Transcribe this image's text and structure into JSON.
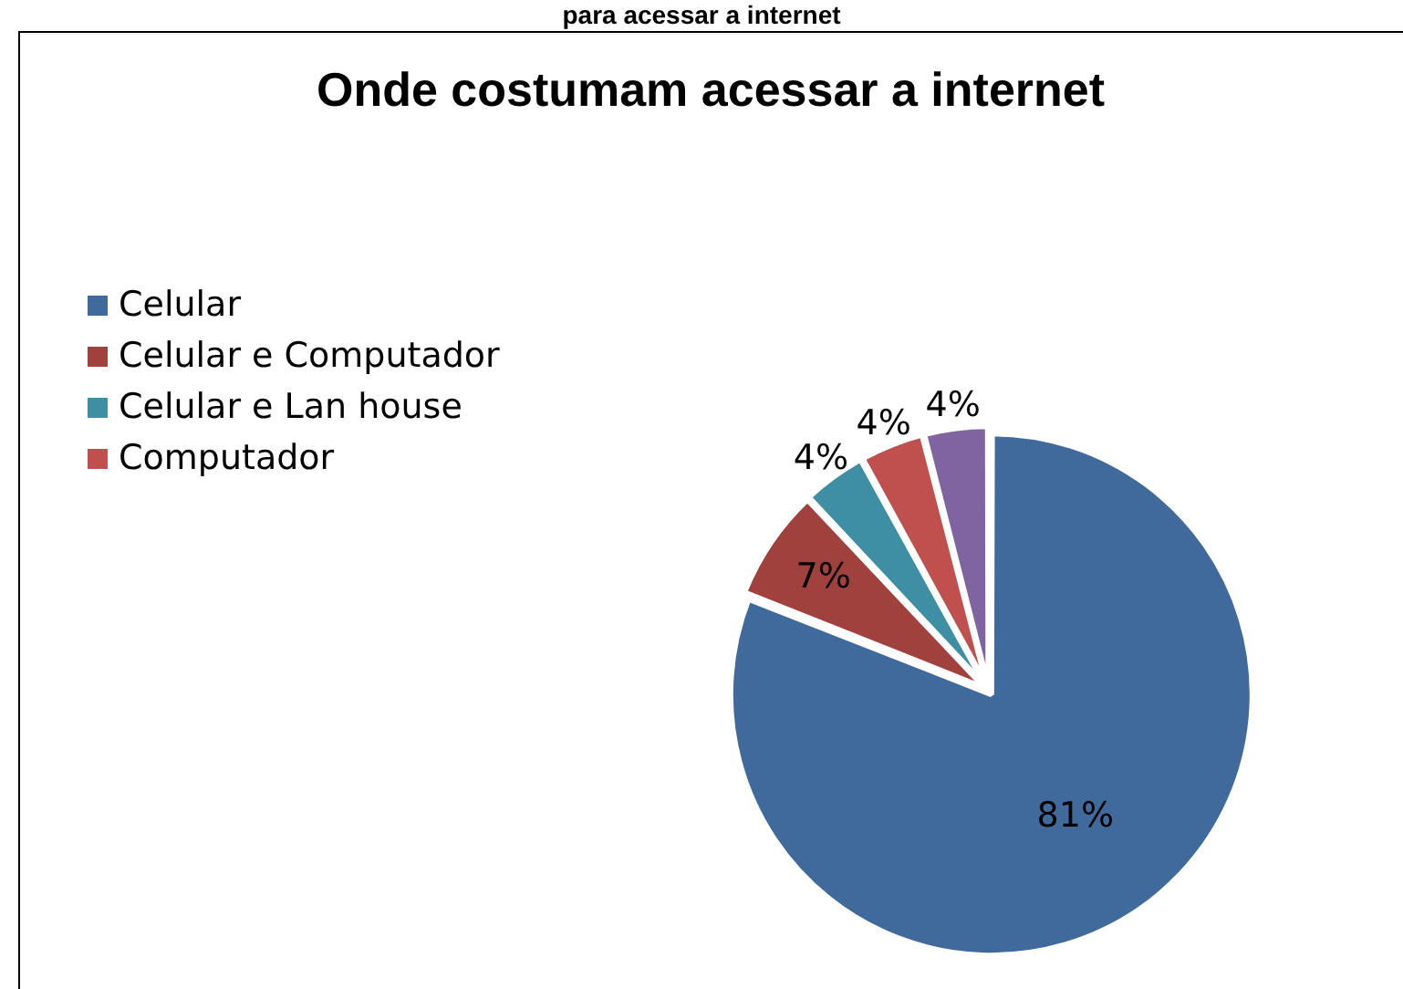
{
  "chart_data": {
    "type": "pie",
    "title": "Onde costumam acessar a internet",
    "annotations": [
      "para acessar a internet"
    ],
    "categories": [
      "Celular",
      "Celular e Computador",
      "Celular e Lan house",
      "Computador",
      null
    ],
    "values": [
      81,
      7,
      4,
      4,
      4
    ],
    "value_labels": [
      "81%",
      "7%",
      "4%",
      "4%",
      "4%"
    ],
    "colors": [
      "#416a9c",
      "#a0413e",
      "#3e8ea4",
      "#c0504d",
      "#8064a2"
    ],
    "legend": "top left"
  }
}
